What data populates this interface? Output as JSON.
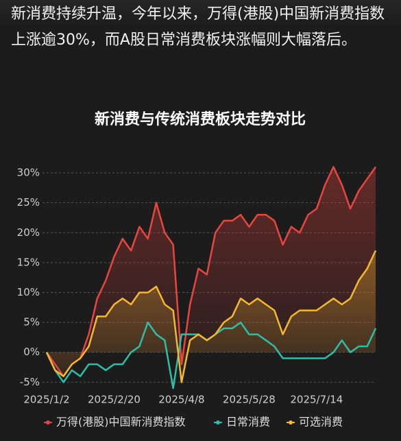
{
  "intro": "新消费持续升温，今年以来，万得(港股)中国新消费指数上涨逾30%，而A股日常消费板块涨幅则大幅落后。",
  "chart_data": {
    "type": "line",
    "title": "新消费与传统消费板块走势对比",
    "categories": [
      "2025/1/2",
      null,
      null,
      null,
      null,
      null,
      null,
      null,
      "2025/2/20",
      null,
      null,
      null,
      null,
      null,
      null,
      null,
      "2025/4/8",
      null,
      null,
      null,
      null,
      null,
      null,
      null,
      "2025/5/28",
      null,
      null,
      null,
      null,
      null,
      null,
      null,
      "2025/7/14",
      null,
      null,
      null,
      null,
      null,
      null,
      null
    ],
    "series": [
      {
        "name": "万得(港股)中国新消费指数",
        "color": "#e8463f",
        "area": true,
        "values": [
          0,
          -2,
          -4,
          -2,
          -1,
          3,
          9,
          12,
          16,
          19,
          17,
          21,
          19,
          25,
          20,
          18,
          -2,
          8,
          14,
          13,
          20,
          22,
          22,
          23,
          21,
          23,
          23,
          22,
          18,
          21,
          20,
          23,
          24,
          28,
          31,
          28,
          24,
          27,
          29,
          31
        ]
      },
      {
        "name": "日常消费",
        "color": "#2ac1a8",
        "area": false,
        "values": [
          0,
          -3,
          -5,
          -3,
          -4,
          -2,
          -2,
          -3,
          -2,
          -2,
          0,
          1,
          5,
          3,
          2,
          -6,
          3,
          3,
          3,
          2,
          3,
          4,
          4,
          5,
          3,
          3,
          2,
          1,
          -1,
          -1,
          -1,
          -1,
          -1,
          -1,
          0,
          2,
          0,
          1,
          1,
          4
        ]
      },
      {
        "name": "可选消费",
        "color": "#f5b82e",
        "area": true,
        "values": [
          0,
          -3,
          -4,
          -2,
          -1,
          1,
          6,
          6,
          8,
          9,
          8,
          10,
          10,
          11,
          8,
          7,
          -5,
          2,
          3,
          2,
          3,
          5,
          6,
          9,
          8,
          9,
          8,
          7,
          3,
          6,
          7,
          7,
          7,
          8,
          9,
          8,
          9,
          12,
          14,
          17
        ]
      }
    ],
    "ylim": [
      -6,
      31.5
    ],
    "yticks": [
      {
        "value": 30,
        "label": "30%"
      },
      {
        "value": 25,
        "label": "25%"
      },
      {
        "value": 20,
        "label": "20%"
      },
      {
        "value": 15,
        "label": "15%"
      },
      {
        "value": 10,
        "label": "10%"
      },
      {
        "value": 5,
        "label": "5%"
      },
      {
        "value": 0,
        "label": "0%"
      },
      {
        "value": -5,
        "label": "-5%"
      }
    ],
    "grid": true
  }
}
